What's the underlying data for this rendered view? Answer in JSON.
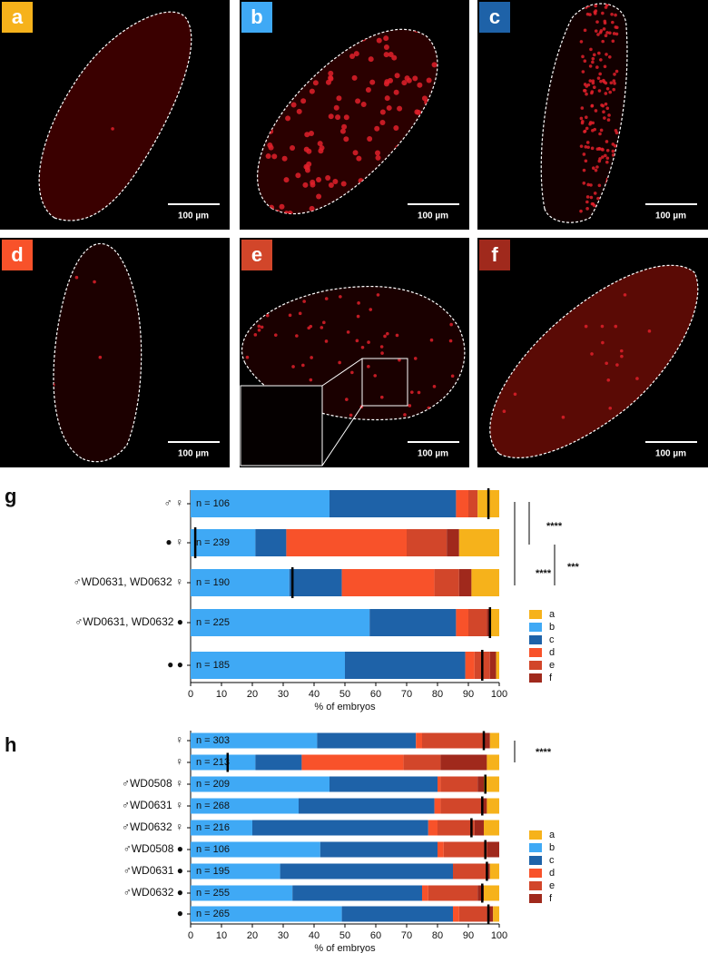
{
  "panels": [
    {
      "label": "a",
      "scale": "100 µm",
      "color": "#f6b21b"
    },
    {
      "label": "b",
      "scale": "100 µm",
      "color": "#3fa9f5"
    },
    {
      "label": "c",
      "scale": "100 µm",
      "color": "#1e62a8"
    },
    {
      "label": "d",
      "scale": "100 µm",
      "color": "#f8522a"
    },
    {
      "label": "e",
      "scale": "100 µm",
      "color": "#d2462a"
    },
    {
      "label": "f",
      "scale": "100 µm",
      "color": "#a0291c"
    }
  ],
  "chart_data": [
    {
      "type": "stacked_barh",
      "panel": "g",
      "xlabel": "% of embryos",
      "xlim": [
        0,
        100
      ],
      "xticks": [
        0,
        10,
        20,
        30,
        40,
        50,
        60,
        70,
        80,
        90,
        100
      ],
      "categories": [
        "♂ ♀",
        "● ♀",
        "♂WD0631, WD0632 ♀",
        "♂WD0631, WD0632 ●",
        "● ●"
      ],
      "n_labels": [
        "n = 106",
        "n = 239",
        "n = 190",
        "n = 225",
        "n = 185"
      ],
      "markers": [
        96.5,
        1.5,
        33,
        97,
        94.5
      ],
      "series": [
        {
          "name": "a",
          "color": "#f6b21b",
          "values": [
            7,
            13,
            9,
            3,
            1
          ]
        },
        {
          "name": "b",
          "color": "#3fa9f5",
          "values": [
            45,
            21,
            32,
            58,
            50
          ]
        },
        {
          "name": "c",
          "color": "#1e62a8",
          "values": [
            41,
            10,
            17,
            28,
            39
          ]
        },
        {
          "name": "d",
          "color": "#f8522a",
          "values": [
            4,
            39,
            30,
            4,
            3
          ]
        },
        {
          "name": "e",
          "color": "#d2462a",
          "values": [
            3,
            13,
            8,
            6,
            5
          ]
        },
        {
          "name": "f",
          "color": "#a0291c",
          "values": [
            0,
            4,
            4,
            1,
            2
          ]
        }
      ],
      "annotations": [
        "****",
        "****",
        "***"
      ]
    },
    {
      "type": "stacked_barh",
      "panel": "h",
      "xlabel": "% of embryos",
      "xlim": [
        0,
        100
      ],
      "xticks": [
        0,
        10,
        20,
        30,
        40,
        50,
        60,
        70,
        80,
        90,
        100
      ],
      "categories": [
        "♀",
        "♀",
        "♂WD0508 ♀",
        "♂WD0631 ♀",
        "♂WD0632 ♀",
        "♂WD0508 ●",
        "♂WD0631 ●",
        "♂WD0632 ●",
        "●"
      ],
      "n_labels": [
        "n = 303",
        "n = 213",
        "n = 209",
        "n = 268",
        "n = 216",
        "n = 106",
        "n = 195",
        "n = 255",
        "n = 265"
      ],
      "markers": [
        95,
        12,
        95.5,
        94.5,
        91,
        95.5,
        96,
        94.5,
        96.5
      ],
      "series": [
        {
          "name": "a",
          "color": "#f6b21b",
          "values": [
            3,
            4,
            5,
            4,
            5,
            0,
            3,
            5,
            2
          ]
        },
        {
          "name": "b",
          "color": "#3fa9f5",
          "values": [
            41,
            21,
            45,
            35,
            20,
            42,
            29,
            33,
            49
          ]
        },
        {
          "name": "c",
          "color": "#1e62a8",
          "values": [
            32,
            15,
            35,
            44,
            57,
            38,
            56,
            42,
            36
          ]
        },
        {
          "name": "d",
          "color": "#f8522a",
          "values": [
            2,
            33,
            1,
            2,
            3,
            2,
            0,
            2,
            2
          ]
        },
        {
          "name": "e",
          "color": "#d2462a",
          "values": [
            20,
            12,
            12,
            13,
            12,
            14,
            11,
            16,
            9
          ]
        },
        {
          "name": "f",
          "color": "#a0291c",
          "values": [
            2,
            15,
            2,
            2,
            3,
            4,
            1,
            2,
            2
          ]
        }
      ],
      "annotations": [
        "****"
      ]
    }
  ]
}
